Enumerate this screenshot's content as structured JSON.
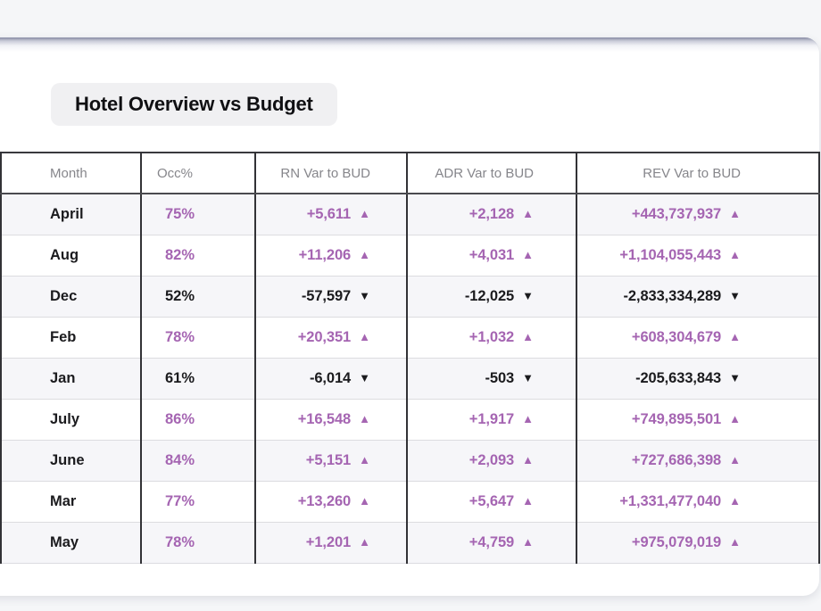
{
  "page": {
    "title_badge": "Hotel Overview vs Budget"
  },
  "colors": {
    "accent_purple": "#a565b2",
    "neutral_black": "#1b1b1e",
    "row_alt_background": "#f6f6f9",
    "card_background": "#ffffff",
    "page_background": "#f5f6f8"
  },
  "icons": {
    "up": "▲",
    "down": "▼"
  },
  "table": {
    "columns": [
      {
        "label": "Month"
      },
      {
        "label": "Occ%"
      },
      {
        "label": "RN Var to BUD"
      },
      {
        "label": "ADR Var to BUD"
      },
      {
        "label": "REV Var to BUD"
      }
    ],
    "rows": [
      {
        "month": "April",
        "occ": "75%",
        "occ_tone": "accent",
        "rn": {
          "v": "+5,611",
          "d": "up"
        },
        "adr": {
          "v": "+2,128",
          "d": "up"
        },
        "rev": {
          "v": "+443,737,937",
          "d": "up"
        }
      },
      {
        "month": "Aug",
        "occ": "82%",
        "occ_tone": "accent",
        "rn": {
          "v": "+11,206",
          "d": "up"
        },
        "adr": {
          "v": "+4,031",
          "d": "up"
        },
        "rev": {
          "v": "+1,104,055,443",
          "d": "up"
        }
      },
      {
        "month": "Dec",
        "occ": "52%",
        "occ_tone": "neutral",
        "rn": {
          "v": "-57,597",
          "d": "down"
        },
        "adr": {
          "v": "-12,025",
          "d": "down"
        },
        "rev": {
          "v": "-2,833,334,289",
          "d": "down"
        }
      },
      {
        "month": "Feb",
        "occ": "78%",
        "occ_tone": "accent",
        "rn": {
          "v": "+20,351",
          "d": "up"
        },
        "adr": {
          "v": "+1,032",
          "d": "up"
        },
        "rev": {
          "v": "+608,304,679",
          "d": "up"
        }
      },
      {
        "month": "Jan",
        "occ": "61%",
        "occ_tone": "neutral",
        "rn": {
          "v": "-6,014",
          "d": "down"
        },
        "adr": {
          "v": "-503",
          "d": "down"
        },
        "rev": {
          "v": "-205,633,843",
          "d": "down"
        }
      },
      {
        "month": "July",
        "occ": "86%",
        "occ_tone": "accent",
        "rn": {
          "v": "+16,548",
          "d": "up"
        },
        "adr": {
          "v": "+1,917",
          "d": "up"
        },
        "rev": {
          "v": "+749,895,501",
          "d": "up"
        }
      },
      {
        "month": "June",
        "occ": "84%",
        "occ_tone": "accent",
        "rn": {
          "v": "+5,151",
          "d": "up"
        },
        "adr": {
          "v": "+2,093",
          "d": "up"
        },
        "rev": {
          "v": "+727,686,398",
          "d": "up"
        }
      },
      {
        "month": "Mar",
        "occ": "77%",
        "occ_tone": "accent",
        "rn": {
          "v": "+13,260",
          "d": "up"
        },
        "adr": {
          "v": "+5,647",
          "d": "up"
        },
        "rev": {
          "v": "+1,331,477,040",
          "d": "up"
        }
      },
      {
        "month": "May",
        "occ": "78%",
        "occ_tone": "accent",
        "rn": {
          "v": "+1,201",
          "d": "up"
        },
        "adr": {
          "v": "+4,759",
          "d": "up"
        },
        "rev": {
          "v": "+975,079,019",
          "d": "up"
        }
      }
    ]
  }
}
